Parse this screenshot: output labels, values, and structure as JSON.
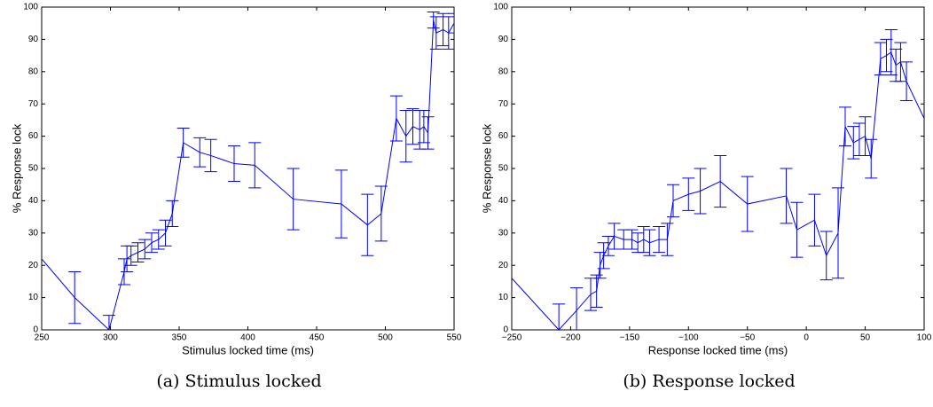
{
  "chart_data": [
    {
      "type": "line",
      "caption": "(a) Stimulus locked",
      "xlabel": "Stimulus locked time (ms)",
      "ylabel": "% Response lock",
      "xlim": [
        250,
        550
      ],
      "xticks": [
        250,
        300,
        350,
        400,
        450,
        500,
        550
      ],
      "ylim": [
        0,
        100
      ],
      "yticks": [
        0,
        10,
        20,
        30,
        40,
        50,
        60,
        70,
        80,
        90,
        100
      ],
      "x": [
        250,
        274,
        299,
        310,
        312,
        315,
        320,
        325,
        330,
        335,
        340,
        345,
        353,
        365,
        373,
        390,
        405,
        433,
        468,
        487,
        497,
        508,
        515,
        520,
        525,
        528,
        531,
        535,
        537,
        542,
        546,
        550
      ],
      "series": [
        {
          "color": "#0000ff",
          "values": [
            22,
            10,
            0,
            18,
            22,
            23,
            24,
            25,
            27,
            28,
            30,
            36,
            58,
            55,
            54,
            51.5,
            51,
            40.5,
            39,
            32.5,
            36,
            65.5,
            60,
            63,
            62,
            63,
            61,
            96,
            92,
            93,
            92,
            95
          ],
          "errors": [
            null,
            8,
            4.5,
            4,
            4,
            3,
            3,
            3,
            3,
            3,
            4,
            4,
            4.5,
            4.5,
            5,
            5.5,
            7,
            9.5,
            10.5,
            9.5,
            8.5,
            7,
            8,
            5.5,
            6,
            5,
            5,
            2.5,
            5,
            5,
            5,
            3
          ]
        }
      ]
    },
    {
      "type": "line",
      "caption": "(b) Response locked",
      "xlabel": "Response locked time (ms)",
      "ylabel": "% Response lock",
      "xlim": [
        -250,
        100
      ],
      "xticks": [
        {
          "value": -250,
          "label": "−250"
        },
        {
          "value": -200,
          "label": "−200"
        },
        {
          "value": -150,
          "label": "−150"
        },
        {
          "value": -100,
          "label": "−100"
        },
        {
          "value": -50,
          "label": "−50"
        },
        0,
        50,
        100
      ],
      "ylim": [
        0,
        100
      ],
      "yticks": [
        0,
        10,
        20,
        30,
        40,
        50,
        60,
        70,
        80,
        90,
        100
      ],
      "x": [
        -250,
        -210,
        -195,
        -183,
        -178,
        -175,
        -172,
        -168,
        -163,
        -155,
        -148,
        -143,
        -138,
        -133,
        -125,
        -118,
        -113,
        -100,
        -90,
        -73,
        -50,
        -17,
        -8,
        7,
        17,
        27,
        33,
        40,
        45,
        50,
        55,
        63,
        68,
        72,
        76,
        80,
        85,
        100
      ],
      "series": [
        {
          "color": "#0000ff",
          "values": [
            16,
            0,
            6,
            11,
            12,
            20,
            23,
            26,
            29,
            28,
            28,
            27,
            28,
            27,
            28,
            28,
            40,
            42,
            43,
            46,
            39,
            41.5,
            31,
            34,
            23,
            30,
            63,
            58,
            59,
            60,
            53,
            84,
            85,
            86,
            82,
            83,
            77,
            65.5
          ],
          "errors": [
            null,
            8,
            7,
            5,
            5,
            4,
            4,
            3,
            4,
            3,
            3,
            3,
            4,
            4,
            4,
            5,
            5,
            5,
            7,
            8,
            8.5,
            8.5,
            8.5,
            8,
            7.5,
            14,
            6,
            5,
            5,
            6,
            6,
            5,
            5,
            7,
            5,
            6,
            6,
            null
          ]
        }
      ]
    }
  ]
}
